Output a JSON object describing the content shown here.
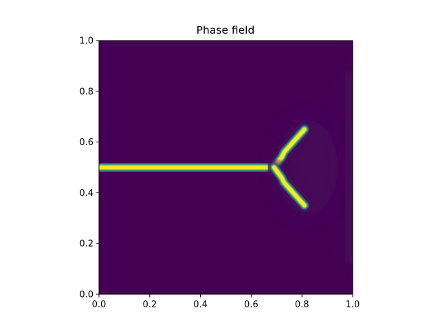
{
  "chart_data": {
    "type": "heatmap",
    "title": "Phase field",
    "xlabel": "",
    "ylabel": "",
    "xlim": [
      0.0,
      1.0
    ],
    "ylim": [
      0.0,
      1.0
    ],
    "x_ticks": [
      "0.0",
      "0.2",
      "0.4",
      "0.6",
      "0.8",
      "1.0"
    ],
    "y_ticks": [
      "0.0",
      "0.2",
      "0.4",
      "0.6",
      "0.8",
      "1.0"
    ],
    "grid": false,
    "colormap": "viridis",
    "value_range": [
      0.0,
      1.0
    ],
    "background_value": 0.0,
    "colors": {
      "background": "#440154",
      "ridge_low": "#3b528b",
      "ridge_mid": "#21918c",
      "ridge_high": "#5ec962",
      "ridge_peak": "#fde725",
      "halo": "#46075a"
    },
    "crack_paths": [
      {
        "name": "main",
        "points": [
          [
            0.0,
            0.5
          ],
          [
            0.69,
            0.5
          ]
        ]
      },
      {
        "name": "upper-branch",
        "points": [
          [
            0.69,
            0.5
          ],
          [
            0.72,
            0.54
          ],
          [
            0.73,
            0.56
          ],
          [
            0.81,
            0.65
          ]
        ]
      },
      {
        "name": "lower-branch",
        "points": [
          [
            0.69,
            0.5
          ],
          [
            0.72,
            0.46
          ],
          [
            0.73,
            0.44
          ],
          [
            0.81,
            0.35
          ]
        ]
      }
    ],
    "crack_value": 1.0
  }
}
